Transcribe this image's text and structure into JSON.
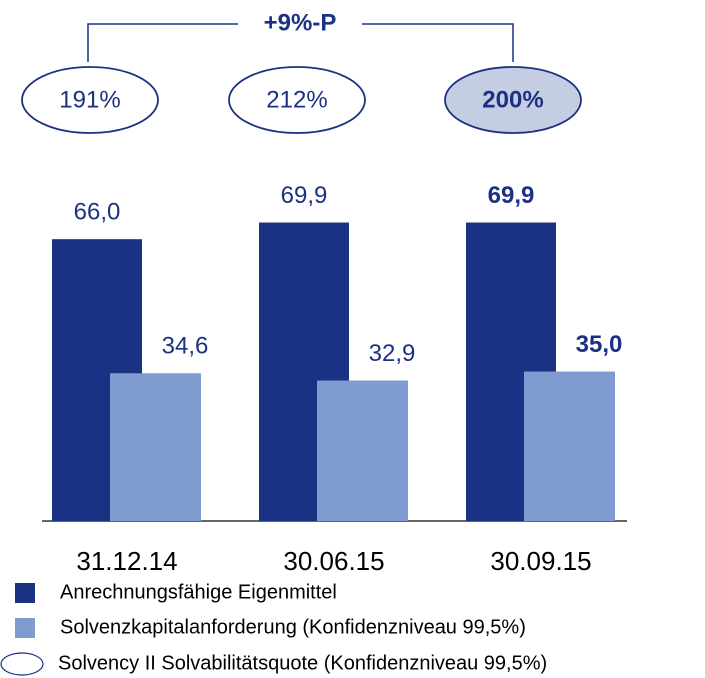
{
  "chart_data": {
    "type": "bar",
    "categories": [
      "31.12.14",
      "30.06.15",
      "30.09.15"
    ],
    "series": [
      {
        "name": "Anrechnungsfähige Eigenmittel",
        "color": "#1b3183",
        "values": [
          66.0,
          69.9,
          69.9
        ],
        "value_labels": [
          "66,0",
          "69,9",
          "69,9"
        ]
      },
      {
        "name": "Solvenzkapitalanforderung (Konfidenzniveau 99,5%)",
        "color": "#7f9bcf",
        "values": [
          34.6,
          32.9,
          35.0
        ],
        "value_labels": [
          "34,6",
          "32,9",
          "35,0"
        ]
      }
    ],
    "ratio": {
      "name": "Solvency II Solvabilitätsquote (Konfidenzniveau 99,5%)",
      "values": [
        191,
        212,
        200
      ],
      "value_labels": [
        "191%",
        "212%",
        "200%"
      ],
      "highlight_color": "#c5cde3"
    },
    "annotation": "+9%-P"
  }
}
